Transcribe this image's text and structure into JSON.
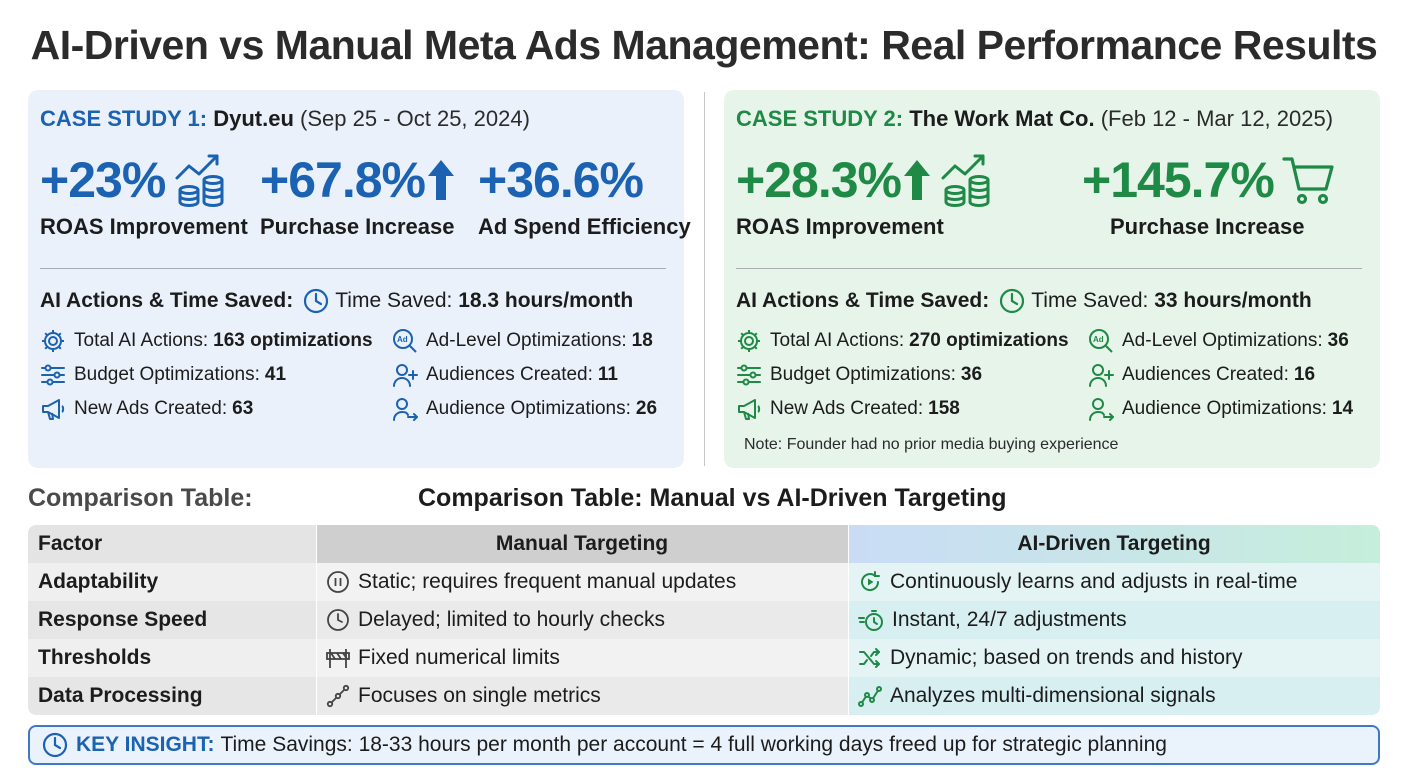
{
  "title": "AI-Driven vs Manual Meta Ads Management: Real Performance Results",
  "case1": {
    "label": "CASE STUDY 1:",
    "name": "Dyut.eu",
    "dates": "(Sep 25 - Oct 25, 2024)",
    "metrics": [
      {
        "value": "+23%",
        "caption": "ROAS Improvement",
        "icon": "growth-coins-icon"
      },
      {
        "value": "+67.8%",
        "caption": "Purchase Increase",
        "icon": "up-arrow-icon"
      },
      {
        "value": "+36.6%",
        "caption": "Ad Spend Efficiency",
        "icon": ""
      }
    ],
    "actions_label": "AI Actions & Time Saved:",
    "time_saved_label": "Time Saved:",
    "time_saved_value": "18.3 hours/month",
    "actions": [
      {
        "label": "Total AI Actions:",
        "value": "163 optimizations",
        "icon": "gear-icon"
      },
      {
        "label": "Ad-Level Optimizations:",
        "value": "18",
        "icon": "ad-search-icon"
      },
      {
        "label": "Budget Optimizations:",
        "value": "41",
        "icon": "sliders-icon"
      },
      {
        "label": "Audiences Created:",
        "value": "11",
        "icon": "user-plus-icon"
      },
      {
        "label": "New Ads Created:",
        "value": "63",
        "icon": "megaphone-icon"
      },
      {
        "label": "Audience Optimizations:",
        "value": "26",
        "icon": "user-arrow-icon"
      }
    ]
  },
  "case2": {
    "label": "CASE STUDY 2:",
    "name": "The Work Mat Co.",
    "dates": "(Feb 12 - Mar 12, 2025)",
    "metrics": [
      {
        "value": "+28.3%",
        "caption": "ROAS Improvement",
        "icon": "up-arrow-growth-coins-icon"
      },
      {
        "value": "+145.7%",
        "caption": "Purchase Increase",
        "icon": "shopping-cart-icon"
      }
    ],
    "actions_label": "AI Actions & Time Saved:",
    "time_saved_label": "Time Saved:",
    "time_saved_value": "33 hours/month",
    "actions": [
      {
        "label": "Total AI Actions:",
        "value": "270 optimizations",
        "icon": "gear-icon"
      },
      {
        "label": "Ad-Level Optimizations:",
        "value": "36",
        "icon": "ad-search-icon"
      },
      {
        "label": "Budget Optimizations:",
        "value": "36",
        "icon": "sliders-icon"
      },
      {
        "label": "Audiences Created:",
        "value": "16",
        "icon": "user-plus-icon"
      },
      {
        "label": "New Ads Created:",
        "value": "158",
        "icon": "megaphone-icon"
      },
      {
        "label": "Audience Optimizations:",
        "value": "14",
        "icon": "user-arrow-icon"
      }
    ],
    "note": "Note: Founder had no prior media buying experience"
  },
  "comparison": {
    "left_label": "Comparison Table:",
    "title": "Comparison Table: Manual vs AI-Driven Targeting",
    "headers": [
      "Factor",
      "Manual Targeting",
      "AI-Driven Targeting"
    ],
    "rows": [
      {
        "factor": "Adaptability",
        "manual": "Static; requires frequent manual updates",
        "ai": "Continuously learns and adjusts in real-time",
        "manual_icon": "pause-icon",
        "ai_icon": "refresh-play-icon"
      },
      {
        "factor": "Response Speed",
        "manual": "Delayed; limited to hourly checks",
        "ai": "Instant, 24/7 adjustments",
        "manual_icon": "clock-icon",
        "ai_icon": "stopwatch-icon"
      },
      {
        "factor": "Thresholds",
        "manual": "Fixed numerical limits",
        "ai": "Dynamic; based on trends and history",
        "manual_icon": "barrier-icon",
        "ai_icon": "shuffle-icon"
      },
      {
        "factor": "Data Processing",
        "manual": "Focuses on single metrics",
        "ai": "Analyzes multi-dimensional signals",
        "manual_icon": "line-dots-icon",
        "ai_icon": "signal-graph-icon"
      }
    ]
  },
  "insight": {
    "label": "KEY INSIGHT:",
    "text": "Time Savings: 18-33 hours per month per account = 4 full working days freed up for strategic planning"
  },
  "colors": {
    "blue": "#1b62b3",
    "green": "#1f8a46"
  }
}
